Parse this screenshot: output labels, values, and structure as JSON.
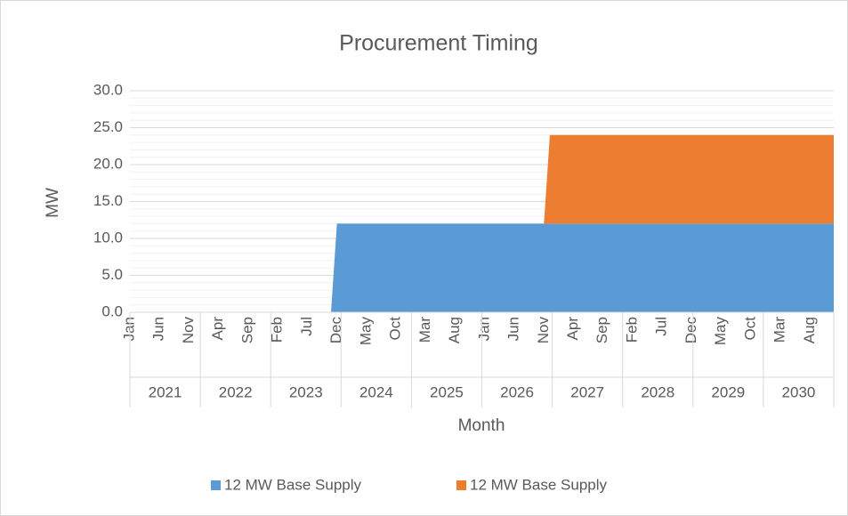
{
  "chart_data": {
    "type": "stacked_area",
    "title": "Procurement Timing",
    "x_label": "Month",
    "y_label": "MW",
    "categories": [
      "Jan",
      null,
      null,
      null,
      null,
      "Jun",
      null,
      null,
      null,
      null,
      "Nov",
      null,
      null,
      null,
      null,
      "Apr",
      null,
      null,
      null,
      null,
      "Sep",
      null,
      null,
      null,
      null,
      "Feb",
      null,
      null,
      null,
      null,
      "Jul",
      null,
      null,
      null,
      null,
      "Dec",
      null,
      null,
      null,
      null,
      "May",
      null,
      null,
      null,
      null,
      "Oct",
      null,
      null,
      null,
      null,
      "Mar",
      null,
      null,
      null,
      null,
      "Aug",
      null,
      null,
      null,
      null,
      "Jan",
      null,
      null,
      null,
      null,
      "Jun",
      null,
      null,
      null,
      null,
      "Nov",
      null,
      null,
      null,
      null,
      "Apr",
      null,
      null,
      null,
      null,
      "Sep",
      null,
      null,
      null,
      null,
      "Feb",
      null,
      null,
      null,
      null,
      "Jul",
      null,
      null,
      null,
      null,
      "Dec",
      null,
      null,
      null,
      null,
      "May",
      null,
      null,
      null,
      null,
      "Oct",
      null,
      null,
      null,
      null,
      "Mar",
      null,
      null,
      null,
      null,
      "Aug",
      null,
      null,
      null,
      null
    ],
    "year_groups": [
      "2021",
      "2022",
      "2023",
      "2024",
      "2025",
      "2026",
      "2027",
      "2028",
      "2029",
      "2030"
    ],
    "series": [
      {
        "name": "12 MW Base Supply",
        "color": "#5b9bd5",
        "values": [
          0,
          0,
          0,
          0,
          0,
          0,
          0,
          0,
          0,
          0,
          0,
          0,
          0,
          0,
          0,
          0,
          0,
          0,
          0,
          0,
          0,
          0,
          0,
          0,
          0,
          0,
          0,
          0,
          0,
          0,
          0,
          0,
          0,
          0,
          0,
          12,
          12,
          12,
          12,
          12,
          12,
          12,
          12,
          12,
          12,
          12,
          12,
          12,
          12,
          12,
          12,
          12,
          12,
          12,
          12,
          12,
          12,
          12,
          12,
          12,
          12,
          12,
          12,
          12,
          12,
          12,
          12,
          12,
          12,
          12,
          12,
          12,
          12,
          12,
          12,
          12,
          12,
          12,
          12,
          12,
          12,
          12,
          12,
          12,
          12,
          12,
          12,
          12,
          12,
          12,
          12,
          12,
          12,
          12,
          12,
          12,
          12,
          12,
          12,
          12,
          12,
          12,
          12,
          12,
          12,
          12,
          12,
          12,
          12,
          12,
          12,
          12,
          12,
          12,
          12,
          12,
          12,
          12,
          12,
          12
        ]
      },
      {
        "name": "12 MW Base Supply",
        "color": "#ed7d31",
        "values": [
          0,
          0,
          0,
          0,
          0,
          0,
          0,
          0,
          0,
          0,
          0,
          0,
          0,
          0,
          0,
          0,
          0,
          0,
          0,
          0,
          0,
          0,
          0,
          0,
          0,
          0,
          0,
          0,
          0,
          0,
          0,
          0,
          0,
          0,
          0,
          0,
          0,
          0,
          0,
          0,
          0,
          0,
          0,
          0,
          0,
          0,
          0,
          0,
          0,
          0,
          0,
          0,
          0,
          0,
          0,
          0,
          0,
          0,
          0,
          0,
          0,
          0,
          0,
          0,
          0,
          0,
          0,
          0,
          0,
          0,
          0,
          12,
          12,
          12,
          12,
          12,
          12,
          12,
          12,
          12,
          12,
          12,
          12,
          12,
          12,
          12,
          12,
          12,
          12,
          12,
          12,
          12,
          12,
          12,
          12,
          12,
          12,
          12,
          12,
          12,
          12,
          12,
          12,
          12,
          12,
          12,
          12,
          12,
          12,
          12,
          12,
          12,
          12,
          12,
          12,
          12,
          12,
          12,
          12,
          12
        ]
      }
    ],
    "ylim": [
      0,
      30
    ],
    "yticks": [
      {
        "value": 0,
        "label": "0.0"
      },
      {
        "value": 5,
        "label": "5.0"
      },
      {
        "value": 10,
        "label": "10.0"
      },
      {
        "value": 15,
        "label": "15.0"
      },
      {
        "value": 20,
        "label": "20.0"
      },
      {
        "value": 25,
        "label": "25.0"
      },
      {
        "value": 30,
        "label": "30.0"
      }
    ],
    "grid": true,
    "minor_grid": true,
    "legend": "bottom"
  }
}
